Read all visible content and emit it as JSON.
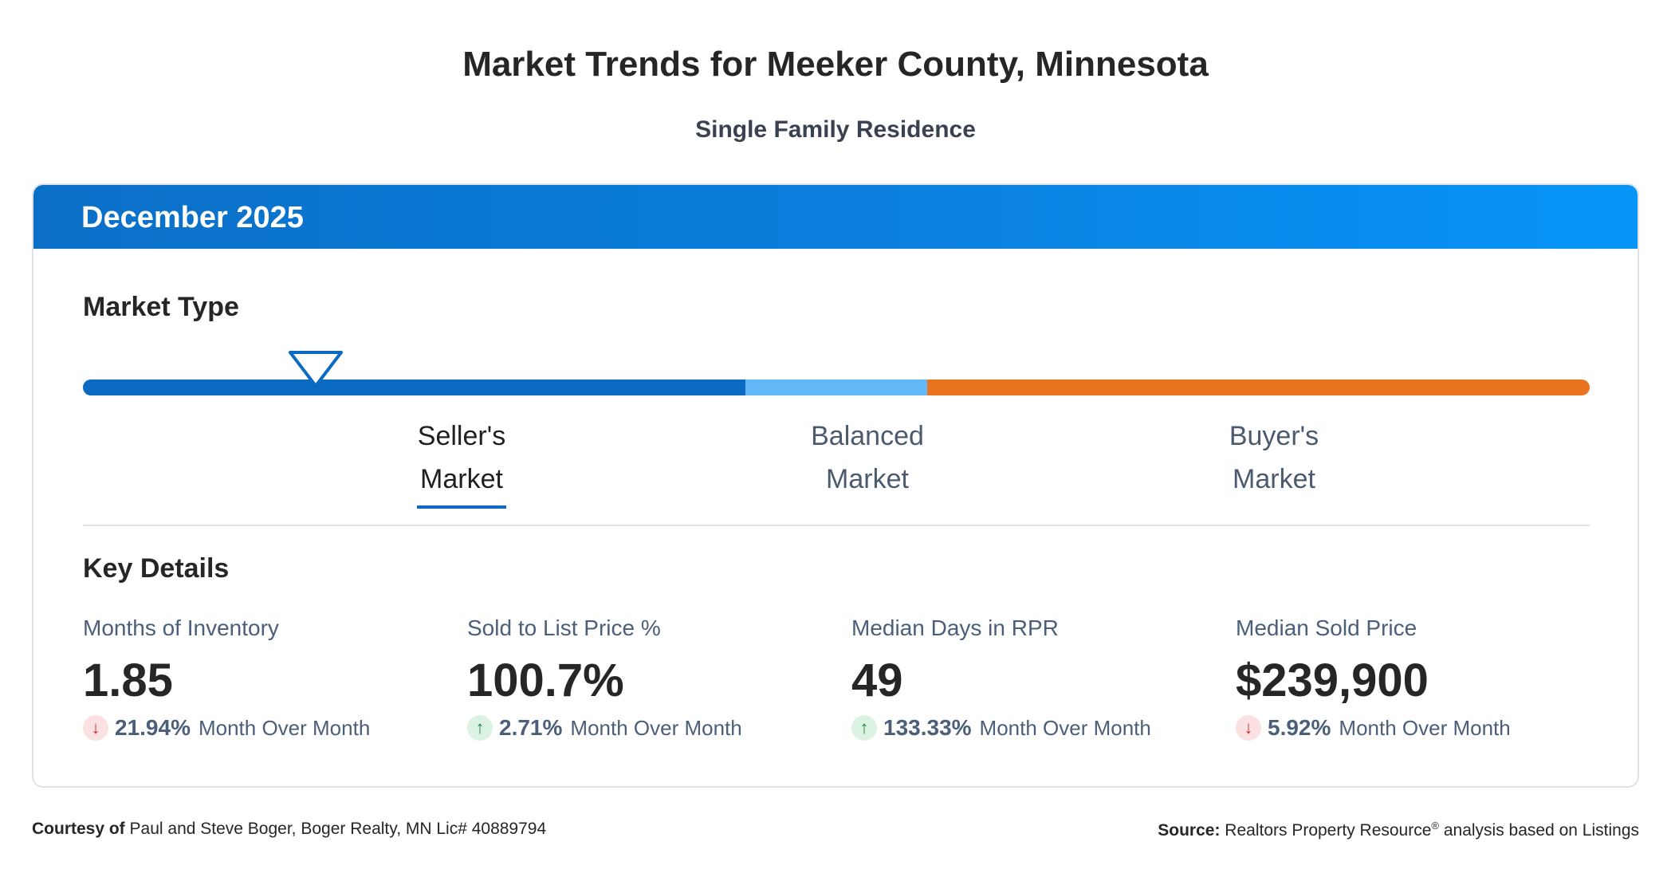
{
  "header": {
    "title": "Market Trends for Meeker County, Minnesota",
    "subtitle": "Single Family Residence"
  },
  "card": {
    "period": "December 2025"
  },
  "market_type": {
    "title": "Market Type",
    "selected": "Seller's Market",
    "indicator_value": 1.85,
    "labels": [
      {
        "line1": "Seller's",
        "line2": "Market"
      },
      {
        "line1": "Balanced",
        "line2": "Market"
      },
      {
        "line1": "Buyer's",
        "line2": "Market"
      }
    ],
    "colors": {
      "seller": "#0b6bc2",
      "balanced": "#63b8f7",
      "buyer": "#ea7320"
    }
  },
  "key_details": {
    "title": "Key Details",
    "metrics": [
      {
        "label": "Months of Inventory",
        "value": "1.85",
        "direction": "down",
        "arrow": "↓",
        "change": "21.94%",
        "change_text": "Month Over Month"
      },
      {
        "label": "Sold to List Price %",
        "value": "100.7%",
        "direction": "up",
        "arrow": "↑",
        "change": "2.71%",
        "change_text": "Month Over Month"
      },
      {
        "label": "Median Days in RPR",
        "value": "49",
        "direction": "up",
        "arrow": "↑",
        "change": "133.33%",
        "change_text": "Month Over Month"
      },
      {
        "label": "Median Sold Price",
        "value": "$239,900",
        "direction": "down",
        "arrow": "↓",
        "change": "5.92%",
        "change_text": "Month Over Month"
      }
    ]
  },
  "footer": {
    "courtesy_label": "Courtesy of",
    "courtesy_text": "Paul and Steve Boger, Boger Realty, MN Lic# 40889794",
    "source_label": "Source:",
    "source_text": "Realtors Property Resource",
    "source_mark": "®",
    "source_suffix": "analysis based on Listings"
  }
}
